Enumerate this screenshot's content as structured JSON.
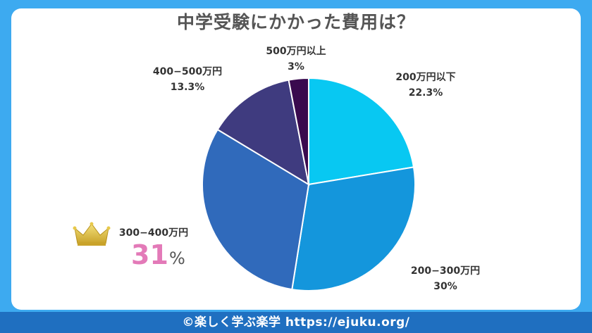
{
  "title": "中学受験にかかった費用は？",
  "footer": "©楽しく学ぶ楽学 https://ejuku.org/",
  "chart_data": {
    "type": "pie",
    "title": "中学受験にかかった費用は？",
    "slices": [
      {
        "label": "200万円以下",
        "value": 22.3,
        "display": "22.3%",
        "color": "#08c8f2"
      },
      {
        "label": "200−300万円",
        "value": 30,
        "display": "30%",
        "color": "#1496dc"
      },
      {
        "label": "300−400万円",
        "value": 31,
        "display": "31",
        "unit": "%",
        "color": "#306abb",
        "highlight": true
      },
      {
        "label": "400−500万円",
        "value": 13.3,
        "display": "13.3%",
        "color": "#3f3b7f"
      },
      {
        "label": "500万円以上",
        "value": 3,
        "display": "3%",
        "color": "#3a0a4e"
      }
    ],
    "highlight_icon": "crown-icon"
  }
}
